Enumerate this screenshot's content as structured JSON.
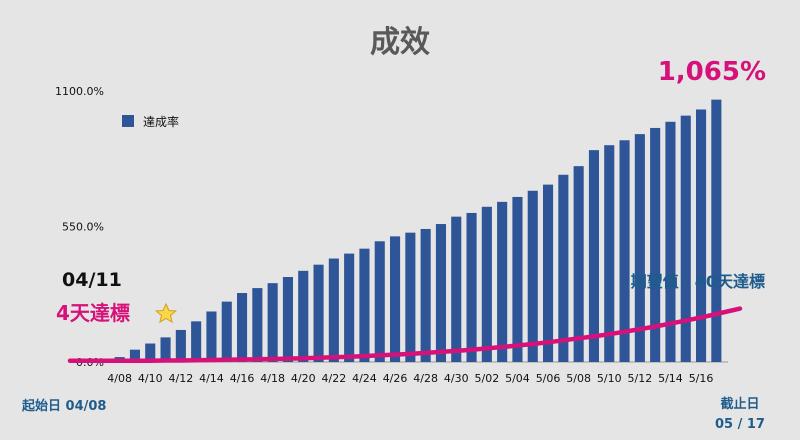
{
  "chart_data": {
    "type": "bar",
    "title": "成效",
    "series": [
      {
        "name": "達成率",
        "color": "#2d5597"
      }
    ],
    "categories": [
      "4/08",
      "4/09",
      "4/10",
      "4/11",
      "4/12",
      "4/13",
      "4/14",
      "4/15",
      "4/16",
      "4/17",
      "4/18",
      "4/19",
      "4/20",
      "4/21",
      "4/22",
      "4/23",
      "4/24",
      "4/25",
      "4/26",
      "4/27",
      "4/28",
      "4/29",
      "4/30",
      "5/01",
      "5/02",
      "5/03",
      "5/04",
      "5/05",
      "5/06",
      "5/07",
      "5/08",
      "5/09",
      "5/10",
      "5/11",
      "5/12",
      "5/13",
      "5/14",
      "5/15",
      "5/16",
      "5/17"
    ],
    "x_tick_labels": [
      "4/08",
      "4/10",
      "4/12",
      "4/14",
      "4/16",
      "4/18",
      "4/20",
      "4/22",
      "4/24",
      "4/26",
      "4/28",
      "4/30",
      "5/02",
      "5/04",
      "5/06",
      "5/08",
      "5/10",
      "5/12",
      "5/14",
      "5/16"
    ],
    "values": [
      20,
      50,
      75,
      100,
      130,
      165,
      205,
      245,
      280,
      300,
      320,
      345,
      370,
      395,
      420,
      440,
      460,
      490,
      510,
      525,
      540,
      560,
      590,
      605,
      630,
      650,
      670,
      695,
      720,
      760,
      795,
      860,
      880,
      900,
      925,
      950,
      975,
      1000,
      1025,
      1065
    ],
    "ylim": [
      0,
      1100
    ],
    "y_tick_labels": [
      "0.0%",
      "550.0%",
      "1100.0%"
    ],
    "y_tick_values": [
      0,
      550,
      1100
    ],
    "target_curve": [
      5,
      5,
      5,
      6,
      6,
      7,
      8,
      9,
      10,
      11,
      12,
      14,
      15,
      17,
      19,
      21,
      24,
      27,
      30,
      33,
      37,
      41,
      45,
      50,
      55,
      61,
      67,
      73,
      80,
      88,
      96,
      104,
      113,
      123,
      133,
      144,
      156,
      168,
      181,
      195
    ],
    "target_color": "#d6127a",
    "legend": "達成率",
    "legend_position": "top-left",
    "grid": false
  },
  "annotations": {
    "final_value": "1,065%",
    "first_hit_date": "04/11",
    "first_hit_text": "4天達標",
    "star_icon": "star-icon",
    "target_label": "期望值：40天達標",
    "start_label": "起始日 04/08",
    "end_label_line1": "截止日",
    "end_label_line2": "05 / 17"
  }
}
